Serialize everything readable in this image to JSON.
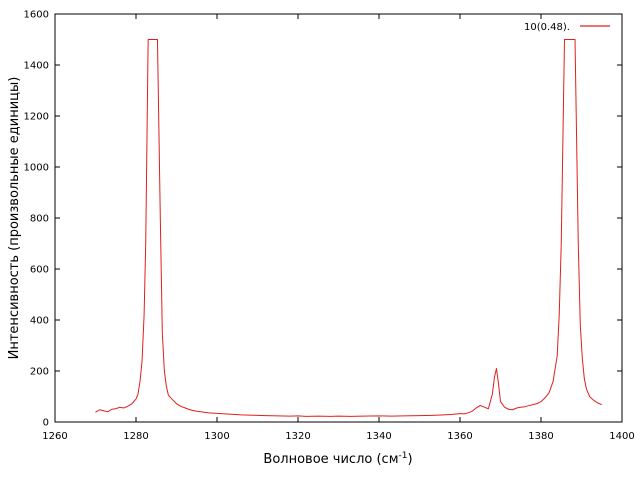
{
  "chart_data": {
    "type": "line",
    "xlabel": "Волновое число (см",
    "xlabel_sup": "-1",
    "xlabel_close": ")",
    "ylabel": "Интенсивность (произвольные единицы)",
    "xlim": [
      1260,
      1400
    ],
    "ylim": [
      0,
      1600
    ],
    "xticks": [
      1260,
      1280,
      1300,
      1320,
      1340,
      1360,
      1380,
      1400
    ],
    "yticks": [
      0,
      200,
      400,
      600,
      800,
      1000,
      1200,
      1400,
      1600
    ],
    "grid": false,
    "legend_position": "top-right",
    "series": [
      {
        "name": "10(0.48).",
        "color": "#e0201b",
        "x": [
          1270,
          1271,
          1272,
          1273,
          1274,
          1275,
          1276,
          1277,
          1278,
          1279,
          1280,
          1280.5,
          1281,
          1281.5,
          1282,
          1282.4,
          1282.7,
          1283,
          1285.3,
          1285.6,
          1286,
          1286.5,
          1287,
          1287.5,
          1288,
          1289,
          1290,
          1291,
          1292,
          1293,
          1294,
          1295,
          1296,
          1298,
          1300,
          1302,
          1304,
          1306,
          1308,
          1310,
          1312,
          1315,
          1318,
          1320,
          1322,
          1325,
          1328,
          1330,
          1333,
          1336,
          1340,
          1343,
          1346,
          1350,
          1353,
          1356,
          1358,
          1360,
          1361,
          1362,
          1363,
          1364,
          1365,
          1366,
          1367,
          1368,
          1368.5,
          1369,
          1369.5,
          1370,
          1371,
          1372,
          1373,
          1374,
          1375,
          1376,
          1377,
          1378,
          1379,
          1380,
          1381,
          1382,
          1383,
          1384,
          1384.5,
          1385,
          1385.4,
          1385.8,
          1386.1,
          1388.4,
          1388.7,
          1389.2,
          1389.7,
          1390.2,
          1390.7,
          1391.2,
          1392,
          1393,
          1394,
          1395
        ],
        "y": [
          38,
          48,
          44,
          40,
          50,
          52,
          58,
          55,
          62,
          72,
          90,
          110,
          160,
          240,
          420,
          700,
          1100,
          1500,
          1500,
          1200,
          800,
          350,
          200,
          140,
          105,
          88,
          72,
          62,
          56,
          50,
          45,
          42,
          40,
          36,
          34,
          32,
          30,
          28,
          27,
          26,
          25,
          24,
          23,
          24,
          22,
          23,
          22,
          23,
          22,
          23,
          24,
          23,
          24,
          25,
          26,
          28,
          30,
          33,
          32,
          36,
          42,
          55,
          65,
          58,
          52,
          110,
          175,
          210,
          150,
          80,
          58,
          50,
          48,
          55,
          58,
          60,
          64,
          68,
          72,
          80,
          95,
          115,
          160,
          260,
          420,
          700,
          1100,
          1500,
          1500,
          1500,
          1200,
          700,
          380,
          250,
          170,
          130,
          100,
          85,
          75,
          68
        ]
      }
    ]
  }
}
